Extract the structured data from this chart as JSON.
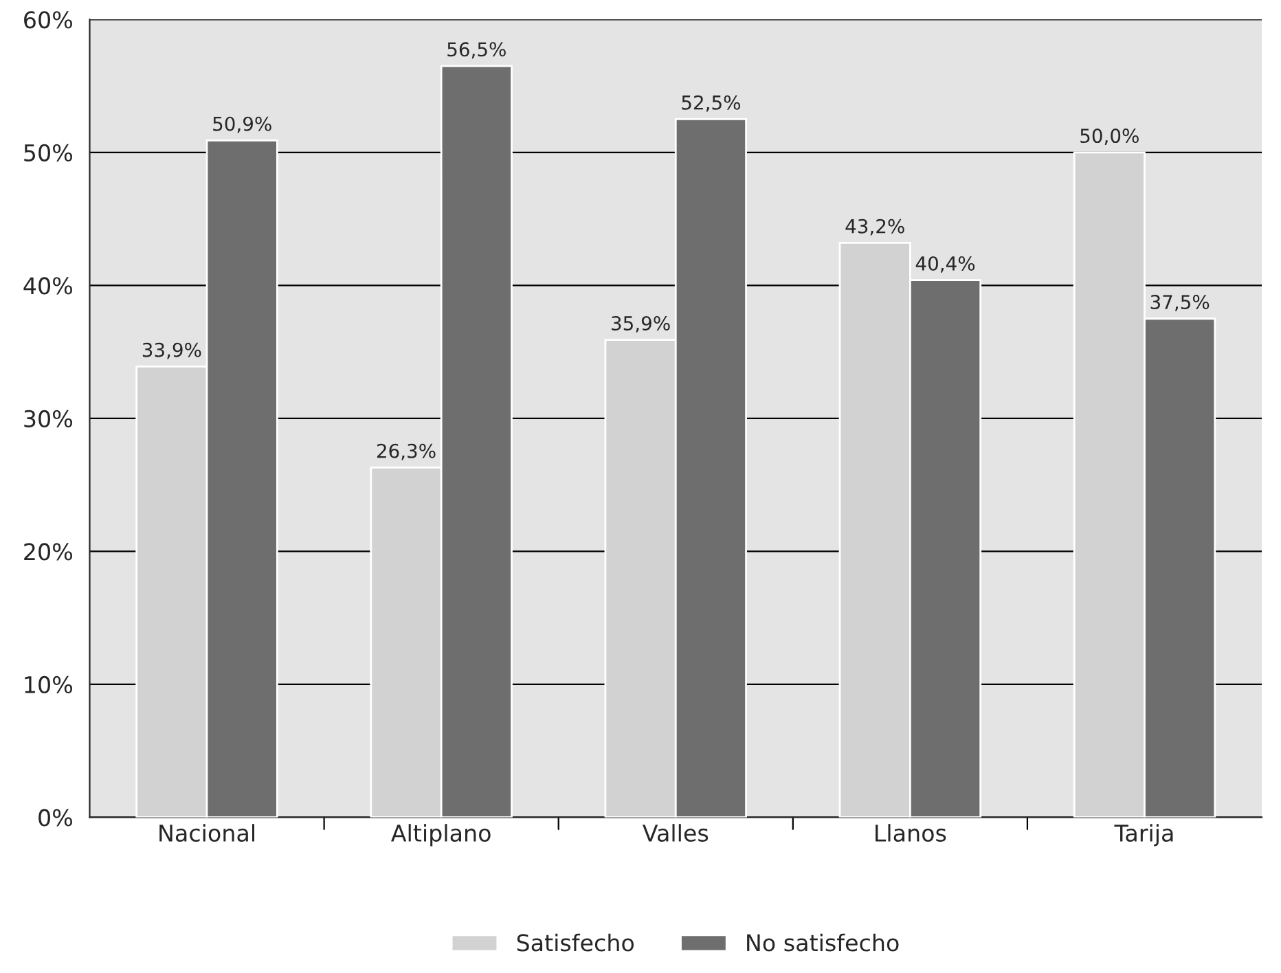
{
  "chart_data": {
    "type": "bar",
    "categories": [
      "Nacional",
      "Altiplano",
      "Valles",
      "Llanos",
      "Tarija"
    ],
    "series": [
      {
        "name": "Satisfecho",
        "color": "#d2d2d2",
        "values": [
          33.9,
          26.3,
          35.9,
          43.2,
          50.0
        ],
        "value_labels": [
          "33,9%",
          "26,3%",
          "35,9%",
          "43,2%",
          "50,0%"
        ]
      },
      {
        "name": "No satisfecho",
        "color": "#6e6e6e",
        "values": [
          50.9,
          56.5,
          52.5,
          40.4,
          37.5
        ],
        "value_labels": [
          "50,9%",
          "56,5%",
          "52,5%",
          "40,4%",
          "37,5%"
        ]
      }
    ],
    "ylim": [
      0,
      60
    ],
    "yticks": [
      {
        "value": 0,
        "label": "0%"
      },
      {
        "value": 10,
        "label": "10%"
      },
      {
        "value": 20,
        "label": "20%"
      },
      {
        "value": 30,
        "label": "30%"
      },
      {
        "value": 40,
        "label": "40%"
      },
      {
        "value": 50,
        "label": "50%"
      },
      {
        "value": 60,
        "label": "60%"
      }
    ],
    "grid": "y",
    "legend": "bottom"
  }
}
